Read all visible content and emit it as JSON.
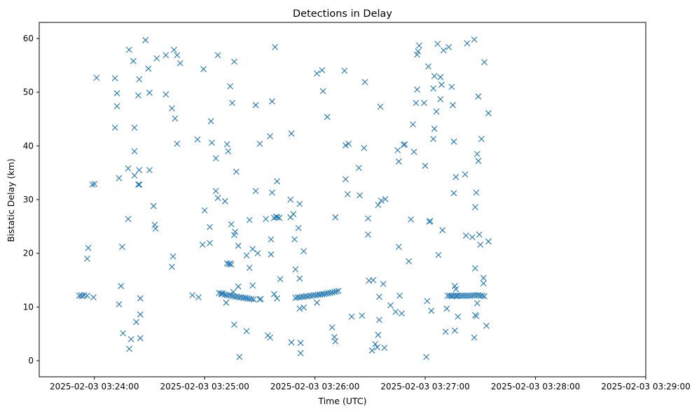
{
  "chart_data": {
    "type": "scatter",
    "title": "Detections in Delay",
    "xlabel": "Time (UTC)",
    "ylabel": "Bistatic Delay (km)",
    "marker": "x",
    "color": "#1f77b4",
    "x_unit": "seconds after 2025-02-03 03:24:00",
    "xlim": [
      -30,
      300
    ],
    "ylim": [
      -3,
      63
    ],
    "x_ticks": [
      {
        "value": 0,
        "label": "2025-02-03 03:24:00"
      },
      {
        "value": 60,
        "label": "2025-02-03 03:25:00"
      },
      {
        "value": 120,
        "label": "2025-02-03 03:26:00"
      },
      {
        "value": 180,
        "label": "2025-02-03 03:27:00"
      },
      {
        "value": 240,
        "label": "2025-02-03 03:28:00"
      },
      {
        "value": 300,
        "label": "2025-02-03 03:29:00"
      }
    ],
    "y_ticks": [
      0,
      10,
      20,
      30,
      40,
      50,
      60
    ],
    "grid": false,
    "points": [
      [
        -8.3,
        12.1
      ],
      [
        -7.2,
        12.2
      ],
      [
        -6.6,
        12.0
      ],
      [
        -5.5,
        12.2
      ],
      [
        -3.9,
        12.1
      ],
      [
        -3.9,
        19.0
      ],
      [
        -3.3,
        21.0
      ],
      [
        -1.1,
        32.8
      ],
      [
        -0.5,
        11.8
      ],
      [
        0.1,
        32.9
      ],
      [
        1.2,
        52.7
      ],
      [
        11.2,
        52.6
      ],
      [
        11.2,
        43.4
      ],
      [
        12.3,
        49.8
      ],
      [
        12.3,
        47.4
      ],
      [
        13.4,
        10.5
      ],
      [
        13.4,
        34.0
      ],
      [
        14.5,
        13.9
      ],
      [
        15.1,
        21.2
      ],
      [
        15.6,
        5.1
      ],
      [
        18.4,
        35.8
      ],
      [
        18.4,
        26.4
      ],
      [
        18.9,
        57.9
      ],
      [
        19.0,
        2.2
      ],
      [
        20.0,
        4.0
      ],
      [
        21.2,
        55.8
      ],
      [
        21.8,
        43.4
      ],
      [
        21.8,
        39.0
      ],
      [
        21.8,
        34.5
      ],
      [
        22.8,
        7.2
      ],
      [
        23.9,
        32.8
      ],
      [
        23.9,
        49.4
      ],
      [
        24.4,
        52.4
      ],
      [
        24.4,
        35.5
      ],
      [
        24.5,
        32.8
      ],
      [
        25.0,
        8.6
      ],
      [
        25.0,
        4.2
      ],
      [
        25.0,
        11.6
      ],
      [
        27.8,
        59.7
      ],
      [
        29.4,
        54.4
      ],
      [
        30.0,
        35.5
      ],
      [
        30.0,
        49.9
      ],
      [
        32.2,
        28.8
      ],
      [
        32.8,
        25.3
      ],
      [
        33.3,
        24.6
      ],
      [
        33.9,
        56.3
      ],
      [
        38.9,
        56.9
      ],
      [
        38.9,
        49.6
      ],
      [
        42.2,
        47.0
      ],
      [
        42.2,
        17.5
      ],
      [
        42.8,
        19.4
      ],
      [
        43.3,
        57.9
      ],
      [
        43.9,
        45.1
      ],
      [
        45.0,
        56.9
      ],
      [
        45.0,
        40.4
      ],
      [
        46.7,
        55.4
      ],
      [
        56.1,
        41.2
      ],
      [
        56.7,
        11.8
      ],
      [
        58.9,
        21.6
      ],
      [
        59.4,
        54.3
      ],
      [
        60.0,
        28.0
      ],
      [
        62.8,
        21.9
      ],
      [
        62.8,
        24.9
      ],
      [
        63.4,
        44.6
      ],
      [
        63.9,
        40.6
      ],
      [
        66.1,
        37.7
      ],
      [
        66.1,
        31.6
      ],
      [
        67.2,
        30.3
      ],
      [
        67.2,
        56.9
      ],
      [
        71.1,
        29.7
      ],
      [
        72.2,
        40.3
      ],
      [
        72.8,
        39.0
      ],
      [
        73.3,
        18.0
      ],
      [
        73.9,
        51.1
      ],
      [
        73.9,
        18.1
      ],
      [
        74.5,
        25.4
      ],
      [
        75.0,
        48.0
      ],
      [
        76.1,
        23.4
      ],
      [
        76.1,
        55.7
      ],
      [
        76.6,
        24.0
      ],
      [
        77.2,
        35.2
      ],
      [
        78.3,
        21.4
      ],
      [
        78.3,
        13.8
      ],
      [
        78.9,
        0.7
      ],
      [
        82.8,
        5.5
      ],
      [
        82.8,
        19.6
      ],
      [
        84.4,
        26.2
      ],
      [
        84.4,
        17.3
      ],
      [
        86.1,
        20.8
      ],
      [
        86.1,
        14.0
      ],
      [
        87.8,
        31.6
      ],
      [
        87.8,
        47.6
      ],
      [
        88.9,
        20.0
      ],
      [
        90.0,
        40.4
      ],
      [
        90.0,
        11.4
      ],
      [
        90.5,
        11.5
      ],
      [
        93.3,
        26.4
      ],
      [
        94.4,
        4.7
      ],
      [
        95.6,
        4.3
      ],
      [
        95.6,
        41.8
      ],
      [
        96.1,
        19.8
      ],
      [
        96.1,
        22.6
      ],
      [
        96.7,
        31.3
      ],
      [
        96.7,
        48.3
      ],
      [
        97.8,
        12.4
      ],
      [
        97.8,
        26.6
      ],
      [
        98.3,
        58.4
      ],
      [
        98.9,
        26.8
      ],
      [
        99.4,
        33.4
      ],
      [
        99.4,
        11.6
      ],
      [
        99.5,
        26.7
      ],
      [
        100.6,
        26.6
      ],
      [
        101.1,
        15.2
      ],
      [
        106.7,
        30.0
      ],
      [
        106.7,
        26.7
      ],
      [
        107.2,
        3.4
      ],
      [
        107.2,
        42.3
      ],
      [
        108.3,
        27.3
      ],
      [
        108.9,
        22.6
      ],
      [
        109.4,
        17.0
      ],
      [
        111.1,
        24.7
      ],
      [
        111.7,
        9.7
      ],
      [
        111.7,
        29.2
      ],
      [
        111.7,
        15.3
      ],
      [
        112.2,
        3.3
      ],
      [
        112.2,
        1.4
      ],
      [
        113.9,
        20.4
      ],
      [
        113.9,
        9.9
      ],
      [
        121.1,
        53.5
      ],
      [
        121.1,
        10.8
      ],
      [
        123.9,
        54.1
      ],
      [
        124.4,
        50.2
      ],
      [
        126.7,
        45.4
      ],
      [
        129.4,
        6.2
      ],
      [
        130.6,
        4.4
      ],
      [
        131.1,
        3.6
      ],
      [
        131.1,
        26.7
      ],
      [
        136.1,
        54.0
      ],
      [
        136.7,
        33.8
      ],
      [
        136.7,
        40.1
      ],
      [
        137.8,
        31.0
      ],
      [
        138.3,
        40.4
      ],
      [
        140.0,
        8.2
      ],
      [
        143.9,
        35.9
      ],
      [
        144.4,
        30.8
      ],
      [
        145.6,
        8.4
      ],
      [
        146.7,
        39.6
      ],
      [
        147.2,
        51.9
      ],
      [
        148.9,
        26.5
      ],
      [
        148.9,
        23.5
      ],
      [
        149.4,
        14.9
      ],
      [
        151.1,
        1.9
      ],
      [
        151.7,
        15.0
      ],
      [
        152.8,
        3.1
      ],
      [
        153.9,
        2.5
      ],
      [
        154.4,
        29.0
      ],
      [
        154.4,
        4.8
      ],
      [
        155.0,
        11.9
      ],
      [
        155.0,
        7.6
      ],
      [
        155.6,
        47.3
      ],
      [
        156.1,
        29.8
      ],
      [
        157.2,
        14.3
      ],
      [
        157.8,
        2.4
      ],
      [
        158.3,
        30.1
      ],
      [
        161.1,
        10.3
      ],
      [
        163.9,
        9.1
      ],
      [
        165.0,
        39.2
      ],
      [
        165.6,
        37.1
      ],
      [
        165.6,
        21.2
      ],
      [
        166.1,
        12.1
      ],
      [
        167.2,
        8.8
      ],
      [
        168.3,
        40.2
      ],
      [
        168.9,
        40.3
      ],
      [
        171.1,
        18.5
      ],
      [
        172.2,
        26.3
      ],
      [
        173.3,
        44.0
      ],
      [
        173.9,
        38.9
      ],
      [
        175.0,
        48.0
      ],
      [
        175.6,
        57.0
      ],
      [
        175.6,
        50.5
      ],
      [
        176.1,
        57.6
      ],
      [
        176.7,
        58.7
      ],
      [
        179.4,
        48.0
      ],
      [
        180.0,
        36.3
      ],
      [
        180.6,
        0.7
      ],
      [
        181.1,
        11.1
      ],
      [
        181.7,
        54.8
      ],
      [
        182.2,
        25.9
      ],
      [
        182.8,
        26.0
      ],
      [
        183.3,
        9.3
      ],
      [
        184.4,
        41.3
      ],
      [
        184.4,
        50.7
      ],
      [
        185.0,
        43.2
      ],
      [
        185.0,
        53.0
      ],
      [
        186.1,
        46.4
      ],
      [
        186.7,
        59.0
      ],
      [
        187.2,
        19.7
      ],
      [
        188.3,
        52.8
      ],
      [
        188.3,
        48.7
      ],
      [
        188.9,
        51.4
      ],
      [
        189.4,
        24.3
      ],
      [
        190.0,
        57.8
      ],
      [
        191.1,
        5.4
      ],
      [
        191.7,
        9.7
      ],
      [
        192.8,
        58.4
      ],
      [
        194.4,
        12.0
      ],
      [
        194.4,
        51.0
      ],
      [
        195.0,
        47.6
      ],
      [
        195.6,
        40.8
      ],
      [
        195.6,
        31.2
      ],
      [
        196.1,
        13.9
      ],
      [
        196.1,
        5.6
      ],
      [
        196.7,
        13.3
      ],
      [
        196.7,
        34.2
      ],
      [
        197.2,
        12.0
      ],
      [
        197.8,
        8.2
      ],
      [
        201.7,
        34.7
      ],
      [
        202.2,
        23.3
      ],
      [
        202.8,
        59.1
      ],
      [
        205.6,
        23.0
      ],
      [
        207.2,
        17.2
      ],
      [
        207.2,
        28.6
      ],
      [
        207.8,
        31.3
      ],
      [
        208.3,
        10.7
      ],
      [
        208.3,
        38.5
      ],
      [
        208.9,
        49.2
      ],
      [
        208.9,
        37.2
      ],
      [
        209.4,
        23.5
      ],
      [
        210.0,
        21.6
      ],
      [
        210.6,
        41.3
      ],
      [
        211.7,
        15.4
      ],
      [
        211.7,
        14.4
      ],
      [
        212.2,
        55.6
      ],
      [
        213.3,
        6.5
      ],
      [
        214.4,
        22.2
      ],
      [
        214.4,
        46.1
      ],
      [
        206.7,
        59.8
      ],
      [
        206.7,
        4.3
      ],
      [
        207.2,
        8.5
      ],
      [
        207.8,
        8.3
      ],
      [
        76.1,
        6.7
      ],
      [
        71.7,
        10.8
      ],
      [
        74.5,
        17.9
      ],
      [
        75.6,
        12.8
      ],
      [
        53.3,
        12.2
      ],
      [
        72.2,
        18.1
      ]
    ],
    "track_points": [
      [
        67.8,
        12.6
      ],
      [
        68.9,
        12.5
      ],
      [
        69.4,
        12.4
      ],
      [
        70.0,
        12.5
      ],
      [
        71.1,
        12.3
      ],
      [
        72.2,
        12.2
      ],
      [
        73.3,
        12.2
      ],
      [
        74.4,
        12.1
      ],
      [
        75.6,
        12.0
      ],
      [
        76.7,
        11.9
      ],
      [
        77.8,
        11.9
      ],
      [
        78.9,
        11.8
      ],
      [
        80.0,
        11.8
      ],
      [
        81.1,
        11.7
      ],
      [
        82.2,
        11.7
      ],
      [
        83.3,
        11.6
      ],
      [
        84.4,
        11.5
      ],
      [
        85.6,
        11.5
      ],
      [
        86.7,
        11.4
      ],
      [
        109.4,
        11.7
      ],
      [
        110.6,
        11.8
      ],
      [
        111.7,
        11.8
      ],
      [
        112.8,
        11.9
      ],
      [
        113.9,
        11.9
      ],
      [
        115.0,
        12.0
      ],
      [
        116.1,
        12.0
      ],
      [
        117.2,
        12.1
      ],
      [
        118.3,
        12.1
      ],
      [
        119.4,
        12.2
      ],
      [
        120.6,
        12.2
      ],
      [
        121.7,
        12.3
      ],
      [
        122.8,
        12.3
      ],
      [
        123.9,
        12.4
      ],
      [
        125.0,
        12.4
      ],
      [
        126.1,
        12.5
      ],
      [
        127.2,
        12.6
      ],
      [
        128.3,
        12.6
      ],
      [
        129.4,
        12.7
      ],
      [
        130.6,
        12.8
      ],
      [
        131.7,
        12.9
      ],
      [
        132.8,
        13.0
      ],
      [
        192.2,
        12.1
      ],
      [
        193.3,
        12.1
      ],
      [
        194.4,
        12.1
      ],
      [
        195.6,
        12.1
      ],
      [
        196.7,
        12.1
      ],
      [
        197.8,
        12.1
      ],
      [
        198.9,
        12.1
      ],
      [
        200.0,
        12.1
      ],
      [
        201.1,
        12.1
      ],
      [
        202.2,
        12.1
      ],
      [
        203.3,
        12.1
      ],
      [
        204.4,
        12.1
      ],
      [
        205.6,
        12.1
      ],
      [
        206.7,
        12.2
      ],
      [
        207.8,
        12.2
      ],
      [
        208.9,
        12.2
      ],
      [
        210.0,
        12.1
      ],
      [
        211.1,
        12.1
      ],
      [
        212.2,
        12.0
      ]
    ]
  }
}
